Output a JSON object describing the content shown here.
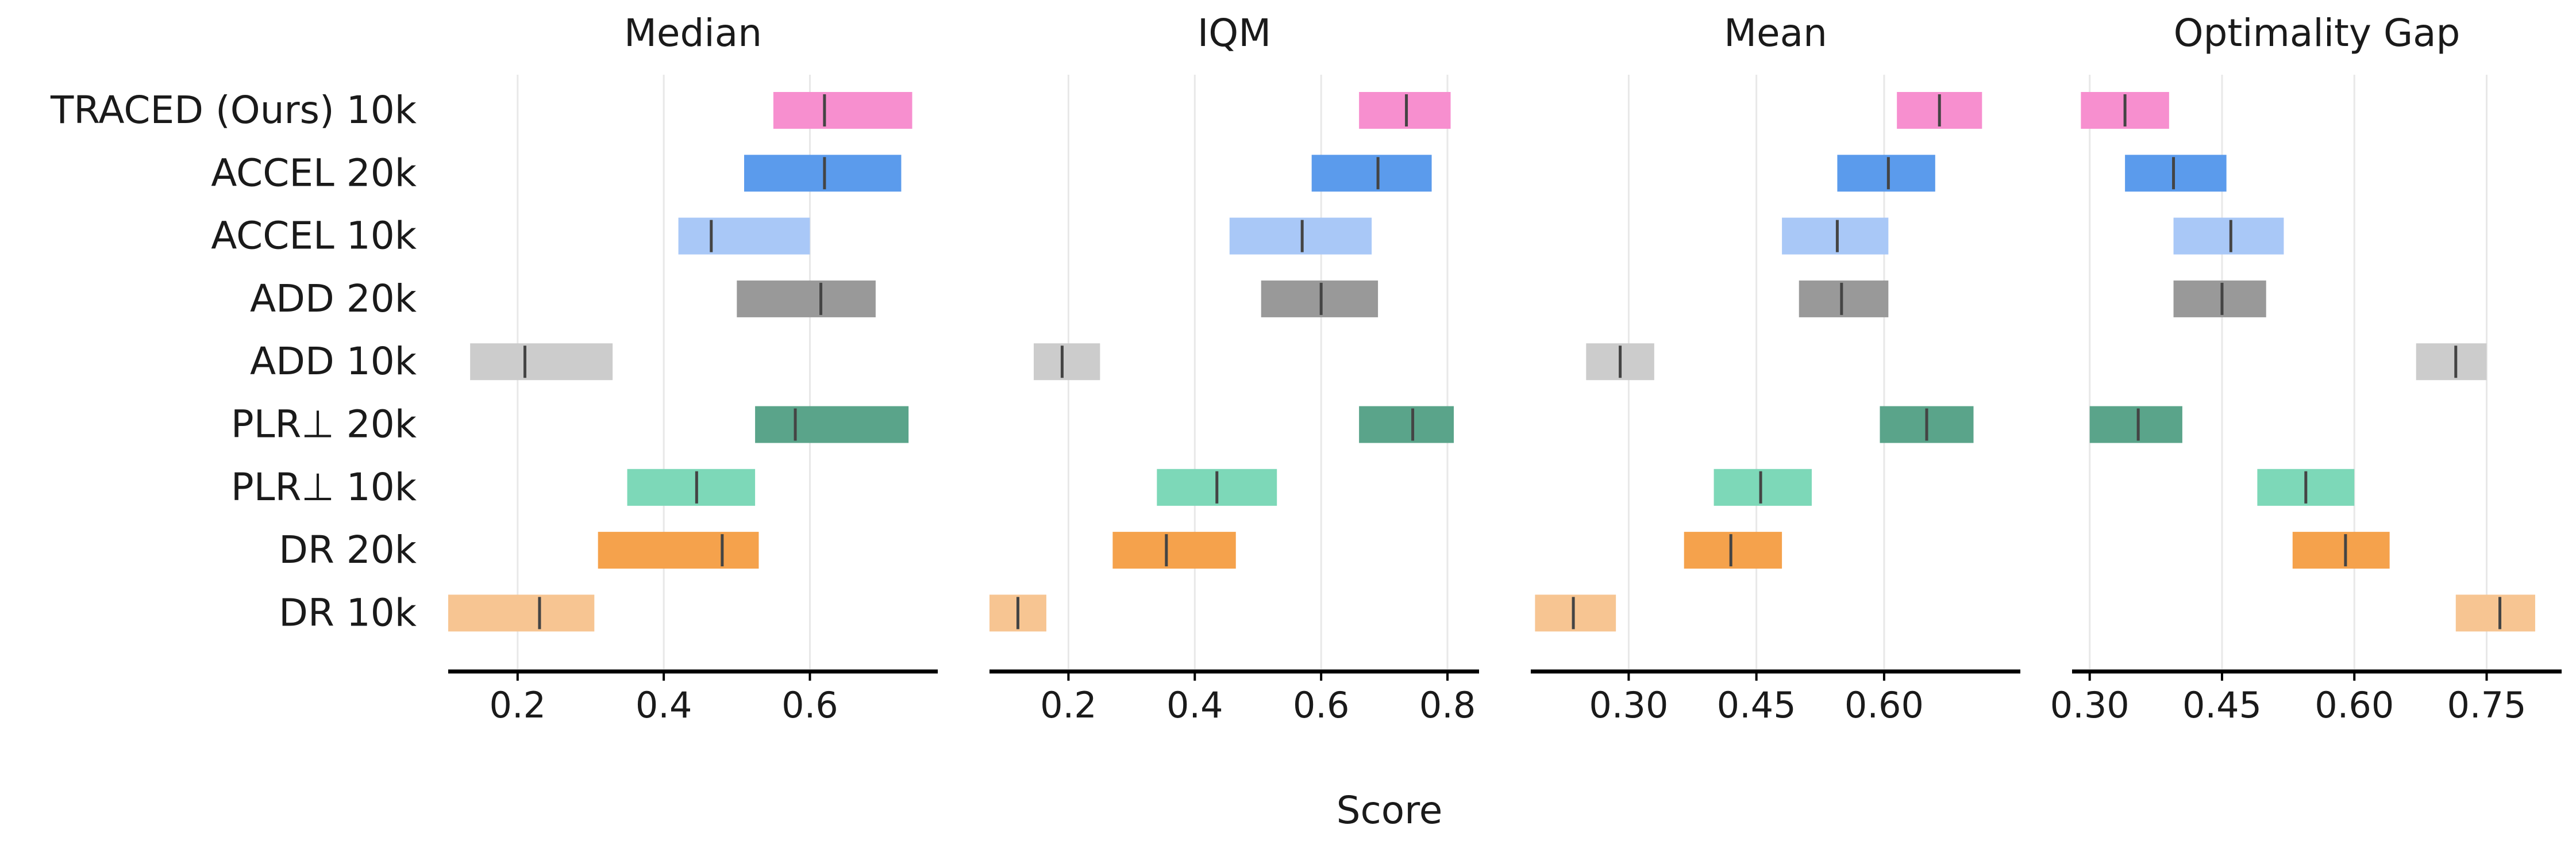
{
  "chart_data": {
    "type": "interval",
    "xlabel": "Score",
    "methods": [
      "TRACED (Ours) 10k",
      "ACCEL 20k",
      "ACCEL 10k",
      "ADD 20k",
      "ADD 10k",
      "PLR⊥ 20k",
      "PLR⊥ 10k",
      "DR 20k",
      "DR 10k"
    ],
    "colors": [
      "#f78fcf",
      "#5b9bec",
      "#a9c8f7",
      "#999999",
      "#cccccc",
      "#5aa48a",
      "#7dd8b8",
      "#f5a24c",
      "#f7c592"
    ],
    "panels": [
      {
        "title": "Median",
        "xlim": [
          0.105,
          0.775
        ],
        "ticks": [
          0.2,
          0.4,
          0.6
        ],
        "tick_labels": [
          "0.2",
          "0.4",
          "0.6"
        ],
        "intervals": [
          {
            "low": 0.55,
            "high": 0.74,
            "point": 0.62
          },
          {
            "low": 0.51,
            "high": 0.725,
            "point": 0.62
          },
          {
            "low": 0.42,
            "high": 0.6,
            "point": 0.465
          },
          {
            "low": 0.5,
            "high": 0.69,
            "point": 0.615
          },
          {
            "low": 0.135,
            "high": 0.33,
            "point": 0.21
          },
          {
            "low": 0.525,
            "high": 0.735,
            "point": 0.58
          },
          {
            "low": 0.35,
            "high": 0.525,
            "point": 0.445
          },
          {
            "low": 0.31,
            "high": 0.53,
            "point": 0.48
          },
          {
            "low": 0.105,
            "high": 0.305,
            "point": 0.23
          }
        ]
      },
      {
        "title": "IQM",
        "xlim": [
          0.075,
          0.85
        ],
        "ticks": [
          0.2,
          0.4,
          0.6,
          0.8
        ],
        "tick_labels": [
          "0.2",
          "0.4",
          "0.6",
          "0.8"
        ],
        "intervals": [
          {
            "low": 0.66,
            "high": 0.805,
            "point": 0.735
          },
          {
            "low": 0.585,
            "high": 0.775,
            "point": 0.69
          },
          {
            "low": 0.455,
            "high": 0.68,
            "point": 0.57
          },
          {
            "low": 0.505,
            "high": 0.69,
            "point": 0.6
          },
          {
            "low": 0.145,
            "high": 0.25,
            "point": 0.19
          },
          {
            "low": 0.66,
            "high": 0.81,
            "point": 0.745
          },
          {
            "low": 0.34,
            "high": 0.53,
            "point": 0.435
          },
          {
            "low": 0.27,
            "high": 0.465,
            "point": 0.355
          },
          {
            "low": 0.075,
            "high": 0.165,
            "point": 0.12
          }
        ]
      },
      {
        "title": "Mean",
        "xlim": [
          0.185,
          0.76
        ],
        "ticks": [
          0.3,
          0.45,
          0.6
        ],
        "tick_labels": [
          "0.30",
          "0.45",
          "0.60"
        ],
        "intervals": [
          {
            "low": 0.615,
            "high": 0.715,
            "point": 0.665
          },
          {
            "low": 0.545,
            "high": 0.66,
            "point": 0.605
          },
          {
            "low": 0.48,
            "high": 0.605,
            "point": 0.545
          },
          {
            "low": 0.5,
            "high": 0.605,
            "point": 0.55
          },
          {
            "low": 0.25,
            "high": 0.33,
            "point": 0.29
          },
          {
            "low": 0.595,
            "high": 0.705,
            "point": 0.65
          },
          {
            "low": 0.4,
            "high": 0.515,
            "point": 0.455
          },
          {
            "low": 0.365,
            "high": 0.48,
            "point": 0.42
          },
          {
            "low": 0.19,
            "high": 0.285,
            "point": 0.235
          }
        ]
      },
      {
        "title": "Optimality Gap",
        "xlim": [
          0.28,
          0.835
        ],
        "ticks": [
          0.3,
          0.45,
          0.6,
          0.75
        ],
        "tick_labels": [
          "0.30",
          "0.45",
          "0.60",
          "0.75"
        ],
        "intervals": [
          {
            "low": 0.29,
            "high": 0.39,
            "point": 0.34
          },
          {
            "low": 0.34,
            "high": 0.455,
            "point": 0.395
          },
          {
            "low": 0.395,
            "high": 0.52,
            "point": 0.46
          },
          {
            "low": 0.395,
            "high": 0.5,
            "point": 0.45
          },
          {
            "low": 0.67,
            "high": 0.75,
            "point": 0.715
          },
          {
            "low": 0.3,
            "high": 0.405,
            "point": 0.355
          },
          {
            "low": 0.49,
            "high": 0.6,
            "point": 0.545
          },
          {
            "low": 0.53,
            "high": 0.64,
            "point": 0.59
          },
          {
            "low": 0.715,
            "high": 0.805,
            "point": 0.765
          }
        ]
      }
    ]
  }
}
